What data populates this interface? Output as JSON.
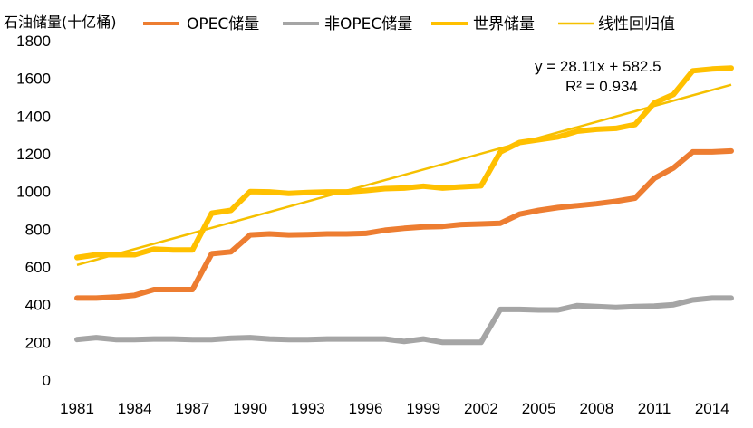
{
  "chart_data": {
    "type": "line",
    "ylabel": "石油储量(十亿桶)",
    "ylim": [
      0,
      1800
    ],
    "yticks": [
      0,
      200,
      400,
      600,
      800,
      1000,
      1200,
      1400,
      1600,
      1800
    ],
    "x": [
      1981,
      1982,
      1983,
      1984,
      1985,
      1986,
      1987,
      1988,
      1989,
      1990,
      1991,
      1992,
      1993,
      1994,
      1995,
      1996,
      1997,
      1998,
      1999,
      2000,
      2001,
      2002,
      2003,
      2004,
      2005,
      2006,
      2007,
      2008,
      2009,
      2010,
      2011,
      2012,
      2013,
      2014,
      2015
    ],
    "xticks": [
      "1981",
      "1984",
      "1987",
      "1990",
      "1993",
      "1996",
      "1999",
      "2002",
      "2005",
      "2008",
      "2011",
      "2014"
    ],
    "grid": false,
    "legend_position": "top",
    "series": [
      {
        "name": "OPEC储量",
        "color": "#ED7D31",
        "values": [
          435,
          435,
          440,
          450,
          480,
          480,
          480,
          670,
          680,
          770,
          775,
          770,
          772,
          775,
          775,
          778,
          795,
          805,
          812,
          815,
          825,
          828,
          832,
          880,
          900,
          915,
          925,
          935,
          948,
          965,
          1070,
          1125,
          1210,
          1210,
          1215
        ]
      },
      {
        "name": "非OPEC储量",
        "color": "#A5A5A5",
        "values": [
          215,
          225,
          215,
          215,
          218,
          218,
          215,
          215,
          222,
          225,
          218,
          215,
          215,
          218,
          218,
          218,
          218,
          205,
          218,
          200,
          200,
          200,
          375,
          375,
          372,
          372,
          395,
          390,
          385,
          390,
          392,
          400,
          425,
          435,
          435
        ]
      },
      {
        "name": "世界储量",
        "color": "#FFC000",
        "values": [
          650,
          665,
          665,
          665,
          695,
          690,
          690,
          885,
          900,
          1000,
          998,
          990,
          995,
          998,
          998,
          1005,
          1015,
          1018,
          1028,
          1018,
          1025,
          1030,
          1210,
          1260,
          1275,
          1290,
          1320,
          1330,
          1335,
          1355,
          1470,
          1515,
          1640,
          1650,
          1655
        ]
      }
    ],
    "trendline": {
      "name": "线性回归值",
      "color": "#F5C000",
      "slope": 28.11,
      "intercept": 582.5,
      "equation": "y = 28.11x + 582.5",
      "r_squared": "R² = 0.934"
    }
  }
}
